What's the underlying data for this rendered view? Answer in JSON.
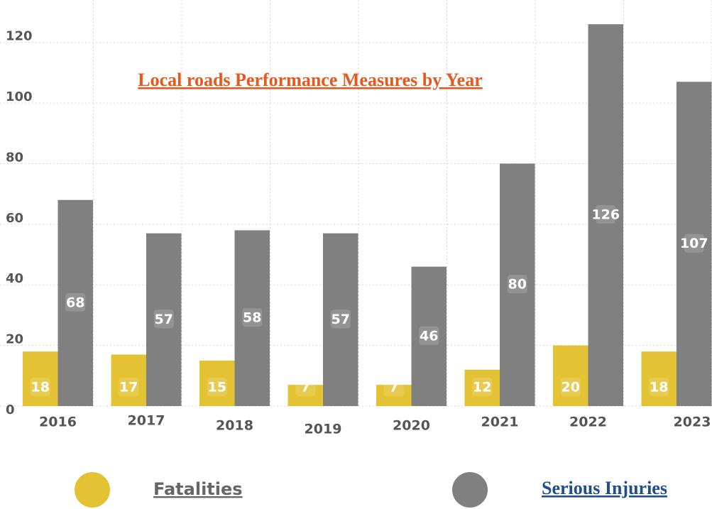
{
  "chart_data": {
    "type": "bar",
    "title": "Local roads Performance Measures by Year",
    "categories": [
      "2016",
      "2017",
      "2018",
      "2019",
      "2020",
      "2021",
      "2022",
      "2023"
    ],
    "series": [
      {
        "name": "Fatalities",
        "color": "#e3c233",
        "values": [
          18,
          17,
          15,
          7,
          7,
          12,
          20,
          18
        ]
      },
      {
        "name": "Serious Injuries",
        "color": "#808080",
        "values": [
          68,
          57,
          58,
          57,
          46,
          80,
          126,
          107
        ]
      }
    ],
    "ylim": [
      0,
      130
    ],
    "yticks": [
      0,
      20,
      40,
      60,
      80,
      100,
      120
    ],
    "grid": true
  }
}
